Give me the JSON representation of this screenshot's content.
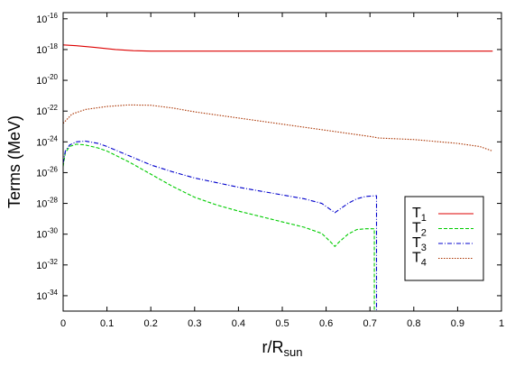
{
  "chart_data": {
    "type": "line",
    "title": "",
    "xlabel": "r/R",
    "xlabel_sub": "sun",
    "ylabel": "Terms (MeV)",
    "xlim": [
      0,
      1
    ],
    "ylim_exponent": [
      -35,
      -15.6
    ],
    "y_scale": "log",
    "grid": false,
    "legend_position": "right",
    "x_ticks": [
      "0",
      "0.1",
      "0.2",
      "0.3",
      "0.4",
      "0.5",
      "0.6",
      "0.7",
      "0.8",
      "0.9",
      "1"
    ],
    "y_ticks": [
      {
        "base": "10",
        "exp": "-16"
      },
      {
        "base": "10",
        "exp": "-18"
      },
      {
        "base": "10",
        "exp": "-20"
      },
      {
        "base": "10",
        "exp": "-22"
      },
      {
        "base": "10",
        "exp": "-24"
      },
      {
        "base": "10",
        "exp": "-26"
      },
      {
        "base": "10",
        "exp": "-28"
      },
      {
        "base": "10",
        "exp": "-30"
      },
      {
        "base": "10",
        "exp": "-32"
      },
      {
        "base": "10",
        "exp": "-34"
      }
    ],
    "series": [
      {
        "name": "T",
        "name_sub": "1",
        "color": "#dd0000",
        "dash": "solid",
        "points": [
          [
            0.0,
            -17.7
          ],
          [
            0.03,
            -17.75
          ],
          [
            0.07,
            -17.85
          ],
          [
            0.12,
            -18.0
          ],
          [
            0.16,
            -18.07
          ],
          [
            0.2,
            -18.1
          ],
          [
            0.3,
            -18.1
          ],
          [
            0.4,
            -18.1
          ],
          [
            0.5,
            -18.1
          ],
          [
            0.6,
            -18.1
          ],
          [
            0.7,
            -18.1
          ],
          [
            0.8,
            -18.1
          ],
          [
            0.9,
            -18.1
          ],
          [
            0.98,
            -18.1
          ]
        ]
      },
      {
        "name": "T",
        "name_sub": "2",
        "color": "#00cc00",
        "dash": "dashed",
        "points": [
          [
            0.0,
            -25.6
          ],
          [
            0.005,
            -24.7
          ],
          [
            0.015,
            -24.3
          ],
          [
            0.03,
            -24.15
          ],
          [
            0.05,
            -24.2
          ],
          [
            0.08,
            -24.4
          ],
          [
            0.1,
            -24.6
          ],
          [
            0.15,
            -25.3
          ],
          [
            0.2,
            -26.1
          ],
          [
            0.25,
            -26.9
          ],
          [
            0.3,
            -27.6
          ],
          [
            0.35,
            -28.1
          ],
          [
            0.4,
            -28.5
          ],
          [
            0.45,
            -28.85
          ],
          [
            0.5,
            -29.2
          ],
          [
            0.55,
            -29.55
          ],
          [
            0.59,
            -29.95
          ],
          [
            0.61,
            -30.5
          ],
          [
            0.62,
            -30.8
          ],
          [
            0.63,
            -30.5
          ],
          [
            0.65,
            -30.0
          ],
          [
            0.67,
            -29.7
          ],
          [
            0.69,
            -29.65
          ],
          [
            0.71,
            -29.65
          ],
          [
            0.71,
            -35.5
          ]
        ]
      },
      {
        "name": "T",
        "name_sub": "3",
        "color": "#0000cc",
        "dash": "dashdot",
        "points": [
          [
            0.0,
            -25.4
          ],
          [
            0.005,
            -24.6
          ],
          [
            0.015,
            -24.2
          ],
          [
            0.03,
            -24.0
          ],
          [
            0.05,
            -23.95
          ],
          [
            0.08,
            -24.1
          ],
          [
            0.1,
            -24.3
          ],
          [
            0.15,
            -24.9
          ],
          [
            0.2,
            -25.5
          ],
          [
            0.25,
            -25.95
          ],
          [
            0.3,
            -26.35
          ],
          [
            0.35,
            -26.65
          ],
          [
            0.4,
            -26.95
          ],
          [
            0.45,
            -27.2
          ],
          [
            0.5,
            -27.45
          ],
          [
            0.55,
            -27.7
          ],
          [
            0.59,
            -28.0
          ],
          [
            0.61,
            -28.4
          ],
          [
            0.62,
            -28.6
          ],
          [
            0.63,
            -28.4
          ],
          [
            0.65,
            -28.0
          ],
          [
            0.67,
            -27.7
          ],
          [
            0.69,
            -27.55
          ],
          [
            0.715,
            -27.5
          ],
          [
            0.715,
            -35.5
          ]
        ]
      },
      {
        "name": "T",
        "name_sub": "4",
        "color": "#aa3300",
        "dash": "dotted",
        "points": [
          [
            0.0,
            -22.8
          ],
          [
            0.02,
            -22.2
          ],
          [
            0.05,
            -21.9
          ],
          [
            0.1,
            -21.7
          ],
          [
            0.15,
            -21.6
          ],
          [
            0.2,
            -21.62
          ],
          [
            0.25,
            -21.8
          ],
          [
            0.3,
            -22.05
          ],
          [
            0.35,
            -22.25
          ],
          [
            0.4,
            -22.45
          ],
          [
            0.45,
            -22.65
          ],
          [
            0.5,
            -22.85
          ],
          [
            0.55,
            -23.05
          ],
          [
            0.6,
            -23.25
          ],
          [
            0.65,
            -23.45
          ],
          [
            0.7,
            -23.65
          ],
          [
            0.72,
            -23.75
          ],
          [
            0.8,
            -23.85
          ],
          [
            0.9,
            -24.1
          ],
          [
            0.95,
            -24.3
          ],
          [
            0.98,
            -24.6
          ]
        ]
      }
    ]
  }
}
